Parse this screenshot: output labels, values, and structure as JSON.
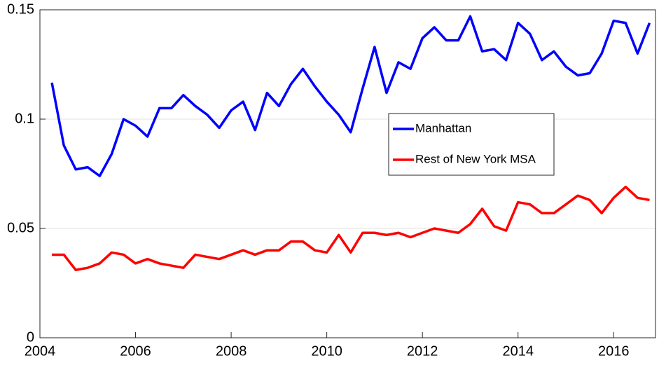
{
  "chart_data": {
    "type": "line",
    "x": [
      2004.25,
      2004.5,
      2004.75,
      2005,
      2005.25,
      2005.5,
      2005.75,
      2006,
      2006.25,
      2006.5,
      2006.75,
      2007,
      2007.25,
      2007.5,
      2007.75,
      2008,
      2008.25,
      2008.5,
      2008.75,
      2009,
      2009.25,
      2009.5,
      2009.75,
      2010,
      2010.25,
      2010.5,
      2010.75,
      2011,
      2011.25,
      2011.5,
      2011.75,
      2012,
      2012.25,
      2012.5,
      2012.75,
      2013,
      2013.25,
      2013.5,
      2013.75,
      2014,
      2014.25,
      2014.5,
      2014.75,
      2015,
      2015.25,
      2015.5,
      2015.75,
      2016,
      2016.25,
      2016.5,
      2016.75
    ],
    "series": [
      {
        "name": "Manhattan",
        "color": "#0000ff",
        "values": [
          0.1167,
          0.088,
          0.077,
          0.078,
          0.074,
          0.084,
          0.1,
          0.097,
          0.092,
          0.105,
          0.105,
          0.111,
          0.106,
          0.102,
          0.096,
          0.104,
          0.108,
          0.095,
          0.112,
          0.106,
          0.116,
          0.123,
          0.115,
          0.108,
          0.102,
          0.094,
          0.114,
          0.133,
          0.112,
          0.126,
          0.123,
          0.137,
          0.142,
          0.136,
          0.136,
          0.147,
          0.131,
          0.132,
          0.127,
          0.144,
          0.139,
          0.127,
          0.131,
          0.124,
          0.12,
          0.121,
          0.13,
          0.145,
          0.144,
          0.13,
          0.144
        ]
      },
      {
        "name": "Rest of New York MSA",
        "color": "#ff0000",
        "values": [
          0.038,
          0.038,
          0.031,
          0.032,
          0.034,
          0.039,
          0.038,
          0.034,
          0.036,
          0.034,
          0.033,
          0.032,
          0.038,
          0.037,
          0.036,
          0.038,
          0.04,
          0.038,
          0.04,
          0.04,
          0.044,
          0.044,
          0.04,
          0.039,
          0.047,
          0.039,
          0.048,
          0.048,
          0.047,
          0.048,
          0.046,
          0.048,
          0.05,
          0.049,
          0.048,
          0.052,
          0.059,
          0.051,
          0.049,
          0.062,
          0.061,
          0.057,
          0.057,
          0.061,
          0.065,
          0.063,
          0.057,
          0.064,
          0.069,
          0.064,
          0.063
        ]
      }
    ],
    "xlim": [
      2004,
      2016.875
    ],
    "xticks": [
      2004,
      2006,
      2008,
      2010,
      2012,
      2014,
      2016
    ],
    "ylim": [
      0,
      0.15
    ],
    "yticks": [
      0,
      0.05,
      0.1,
      0.15
    ],
    "grid": true,
    "legend": "center-right"
  }
}
